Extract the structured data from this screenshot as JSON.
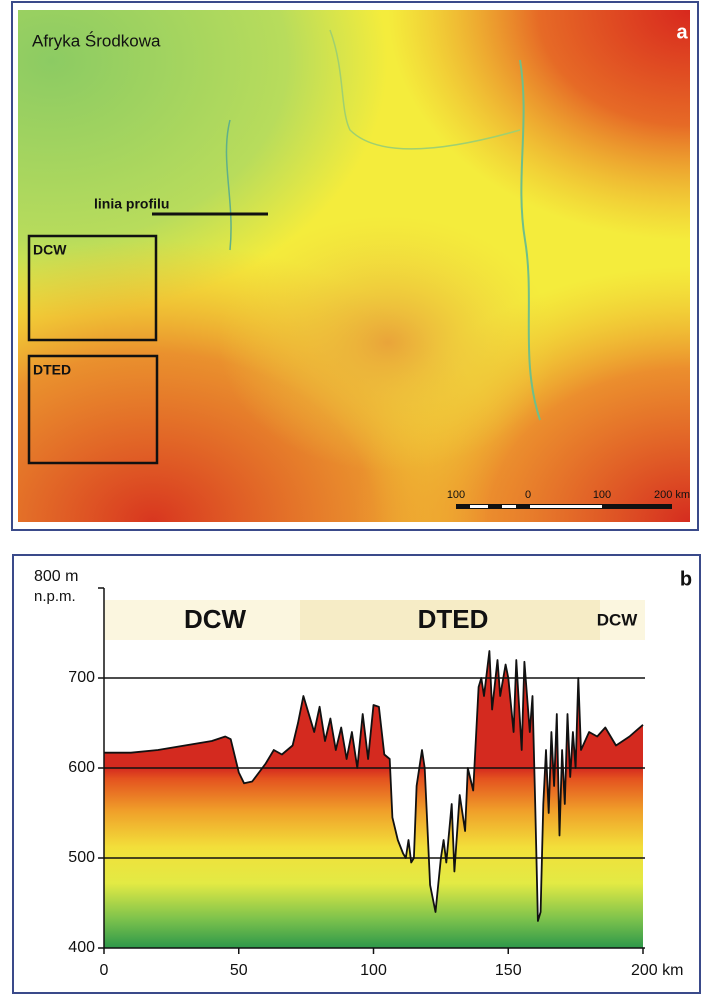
{
  "map": {
    "title": "Afryka Środkowa",
    "panel_label": "a",
    "profile_label": "linia profilu",
    "boxes": [
      "DCW",
      "DTED"
    ],
    "scale_labels": [
      "100",
      "0",
      "100",
      "200 km"
    ]
  },
  "chart_data": {
    "type": "area",
    "panel_label": "b",
    "ylabel": "n.p.m.",
    "annotations": [
      "DCW",
      "DTED",
      "DCW"
    ],
    "x": [
      0,
      10,
      20,
      30,
      40,
      45,
      47,
      50,
      52,
      55,
      60,
      63,
      66,
      70,
      72,
      74,
      76,
      78,
      80,
      82,
      84,
      86,
      88,
      90,
      92,
      94,
      96,
      98,
      100,
      102,
      104,
      106,
      107,
      109,
      111,
      112,
      113,
      114,
      115,
      116,
      118,
      119,
      121,
      123,
      125,
      126,
      127,
      129,
      130,
      132,
      134,
      135,
      137,
      139,
      140,
      141,
      143,
      144,
      146,
      147,
      149,
      150,
      152,
      153,
      155,
      156,
      158,
      159,
      160,
      161,
      162,
      163,
      164,
      165,
      166,
      167,
      168,
      169,
      170,
      171,
      172,
      173,
      174,
      175,
      176,
      177,
      180,
      183,
      186,
      190,
      195,
      200
    ],
    "values": [
      617,
      617,
      620,
      625,
      630,
      635,
      632,
      595,
      583,
      585,
      605,
      620,
      615,
      625,
      650,
      680,
      660,
      640,
      668,
      630,
      655,
      620,
      645,
      610,
      640,
      600,
      660,
      610,
      670,
      668,
      615,
      610,
      545,
      520,
      505,
      500,
      520,
      495,
      500,
      580,
      620,
      600,
      470,
      440,
      500,
      520,
      495,
      560,
      485,
      570,
      530,
      600,
      575,
      690,
      700,
      680,
      730,
      665,
      720,
      680,
      715,
      700,
      640,
      720,
      620,
      718,
      640,
      680,
      560,
      430,
      440,
      560,
      620,
      550,
      640,
      580,
      660,
      525,
      620,
      560,
      660,
      590,
      640,
      600,
      700,
      620,
      640,
      635,
      645,
      625,
      635,
      648
    ],
    "line_color": "#111111",
    "xlim": [
      0,
      200
    ],
    "xticks": [
      0,
      50,
      100,
      150,
      {
        "value": 200,
        "label": "200 km"
      }
    ],
    "ylim": [
      400,
      800
    ],
    "yticks": [
      400,
      500,
      600,
      700,
      {
        "value": 800,
        "label": "800 m"
      }
    ],
    "grid": true
  }
}
